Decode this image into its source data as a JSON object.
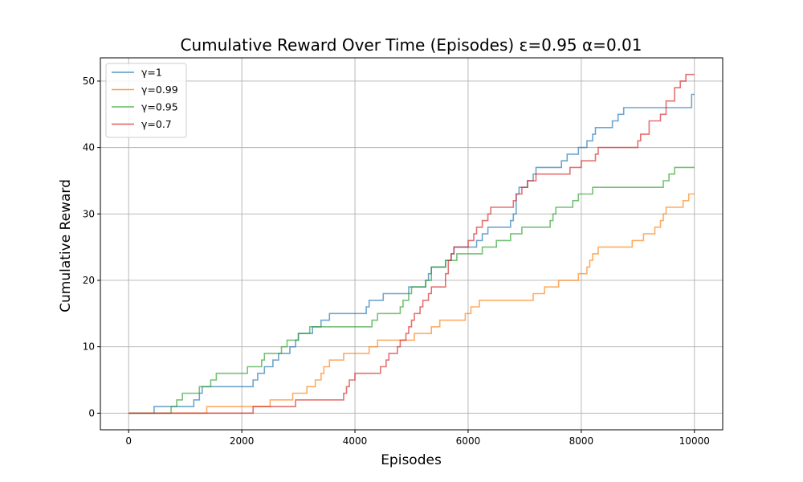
{
  "chart_data": {
    "type": "line",
    "title": "Cumulative Reward Over Time (Episodes) ε=0.95 α=0.01",
    "xlabel": "Episodes",
    "ylabel": "Cumulative Reward",
    "xlim": [
      -500,
      10500
    ],
    "ylim": [
      -2.5,
      53.5
    ],
    "xticks": [
      0,
      2000,
      4000,
      6000,
      8000,
      10000
    ],
    "yticks": [
      0,
      10,
      20,
      30,
      40,
      50
    ],
    "grid": true,
    "legend_position": "top-left",
    "series": [
      {
        "name": "γ=1",
        "color": "#1f77b4",
        "points": [
          [
            0,
            0
          ],
          [
            450,
            0
          ],
          [
            450,
            1
          ],
          [
            1150,
            1
          ],
          [
            1150,
            2
          ],
          [
            1250,
            2
          ],
          [
            1250,
            3
          ],
          [
            1300,
            3
          ],
          [
            1300,
            4
          ],
          [
            2200,
            4
          ],
          [
            2200,
            5
          ],
          [
            2280,
            5
          ],
          [
            2280,
            6
          ],
          [
            2400,
            6
          ],
          [
            2400,
            7
          ],
          [
            2550,
            7
          ],
          [
            2550,
            8
          ],
          [
            2650,
            8
          ],
          [
            2650,
            9
          ],
          [
            2850,
            9
          ],
          [
            2850,
            10
          ],
          [
            2950,
            10
          ],
          [
            2950,
            11
          ],
          [
            3000,
            11
          ],
          [
            3000,
            12
          ],
          [
            3250,
            12
          ],
          [
            3250,
            13
          ],
          [
            3400,
            13
          ],
          [
            3400,
            14
          ],
          [
            3550,
            14
          ],
          [
            3550,
            15
          ],
          [
            4200,
            15
          ],
          [
            4200,
            16
          ],
          [
            4250,
            16
          ],
          [
            4250,
            17
          ],
          [
            4500,
            17
          ],
          [
            4500,
            18
          ],
          [
            4950,
            18
          ],
          [
            4950,
            19
          ],
          [
            5250,
            19
          ],
          [
            5250,
            20
          ],
          [
            5300,
            20
          ],
          [
            5300,
            21
          ],
          [
            5350,
            21
          ],
          [
            5350,
            22
          ],
          [
            5600,
            22
          ],
          [
            5600,
            23
          ],
          [
            5700,
            23
          ],
          [
            5700,
            24
          ],
          [
            5750,
            24
          ],
          [
            5750,
            25
          ],
          [
            6150,
            25
          ],
          [
            6150,
            26
          ],
          [
            6250,
            26
          ],
          [
            6250,
            27
          ],
          [
            6350,
            27
          ],
          [
            6350,
            28
          ],
          [
            6750,
            28
          ],
          [
            6750,
            29
          ],
          [
            6800,
            29
          ],
          [
            6800,
            30
          ],
          [
            6850,
            30
          ],
          [
            6850,
            33
          ],
          [
            6900,
            33
          ],
          [
            6900,
            34
          ],
          [
            7050,
            34
          ],
          [
            7050,
            35
          ],
          [
            7150,
            35
          ],
          [
            7150,
            36
          ],
          [
            7200,
            36
          ],
          [
            7200,
            37
          ],
          [
            7650,
            37
          ],
          [
            7650,
            38
          ],
          [
            7750,
            38
          ],
          [
            7750,
            39
          ],
          [
            7950,
            39
          ],
          [
            7950,
            40
          ],
          [
            8100,
            40
          ],
          [
            8100,
            41
          ],
          [
            8200,
            41
          ],
          [
            8200,
            42
          ],
          [
            8250,
            42
          ],
          [
            8250,
            43
          ],
          [
            8550,
            43
          ],
          [
            8550,
            44
          ],
          [
            8650,
            44
          ],
          [
            8650,
            45
          ],
          [
            8750,
            45
          ],
          [
            8750,
            46
          ],
          [
            9950,
            46
          ],
          [
            9950,
            48
          ],
          [
            10000,
            48
          ]
        ]
      },
      {
        "name": "γ=0.99",
        "color": "#ff7f0e",
        "points": [
          [
            0,
            0
          ],
          [
            1380,
            0
          ],
          [
            1380,
            1
          ],
          [
            2500,
            1
          ],
          [
            2500,
            2
          ],
          [
            2900,
            2
          ],
          [
            2900,
            3
          ],
          [
            3150,
            3
          ],
          [
            3150,
            4
          ],
          [
            3300,
            4
          ],
          [
            3300,
            5
          ],
          [
            3400,
            5
          ],
          [
            3400,
            6
          ],
          [
            3450,
            6
          ],
          [
            3450,
            7
          ],
          [
            3550,
            7
          ],
          [
            3550,
            8
          ],
          [
            3800,
            8
          ],
          [
            3800,
            9
          ],
          [
            4250,
            9
          ],
          [
            4250,
            10
          ],
          [
            4400,
            10
          ],
          [
            4400,
            11
          ],
          [
            5050,
            11
          ],
          [
            5050,
            12
          ],
          [
            5350,
            12
          ],
          [
            5350,
            13
          ],
          [
            5500,
            13
          ],
          [
            5500,
            14
          ],
          [
            5950,
            14
          ],
          [
            5950,
            15
          ],
          [
            6050,
            15
          ],
          [
            6050,
            16
          ],
          [
            6200,
            16
          ],
          [
            6200,
            17
          ],
          [
            7150,
            17
          ],
          [
            7150,
            18
          ],
          [
            7350,
            18
          ],
          [
            7350,
            19
          ],
          [
            7600,
            19
          ],
          [
            7600,
            20
          ],
          [
            7950,
            20
          ],
          [
            7950,
            21
          ],
          [
            8100,
            21
          ],
          [
            8100,
            22
          ],
          [
            8150,
            22
          ],
          [
            8150,
            23
          ],
          [
            8200,
            23
          ],
          [
            8200,
            24
          ],
          [
            8300,
            24
          ],
          [
            8300,
            25
          ],
          [
            8900,
            25
          ],
          [
            8900,
            26
          ],
          [
            9100,
            26
          ],
          [
            9100,
            27
          ],
          [
            9300,
            27
          ],
          [
            9300,
            28
          ],
          [
            9400,
            28
          ],
          [
            9400,
            29
          ],
          [
            9450,
            29
          ],
          [
            9450,
            30
          ],
          [
            9500,
            30
          ],
          [
            9500,
            31
          ],
          [
            9800,
            31
          ],
          [
            9800,
            32
          ],
          [
            9900,
            32
          ],
          [
            9900,
            33
          ],
          [
            10000,
            33
          ]
        ]
      },
      {
        "name": "γ=0.95",
        "color": "#2ca02c",
        "points": [
          [
            0,
            0
          ],
          [
            750,
            0
          ],
          [
            750,
            1
          ],
          [
            850,
            1
          ],
          [
            850,
            2
          ],
          [
            950,
            2
          ],
          [
            950,
            3
          ],
          [
            1250,
            3
          ],
          [
            1250,
            4
          ],
          [
            1450,
            4
          ],
          [
            1450,
            5
          ],
          [
            1550,
            5
          ],
          [
            1550,
            6
          ],
          [
            2100,
            6
          ],
          [
            2100,
            7
          ],
          [
            2350,
            7
          ],
          [
            2350,
            8
          ],
          [
            2400,
            8
          ],
          [
            2400,
            9
          ],
          [
            2700,
            9
          ],
          [
            2700,
            10
          ],
          [
            2800,
            10
          ],
          [
            2800,
            11
          ],
          [
            3000,
            11
          ],
          [
            3000,
            12
          ],
          [
            3200,
            12
          ],
          [
            3200,
            13
          ],
          [
            4300,
            13
          ],
          [
            4300,
            14
          ],
          [
            4400,
            14
          ],
          [
            4400,
            15
          ],
          [
            4800,
            15
          ],
          [
            4800,
            16
          ],
          [
            4850,
            16
          ],
          [
            4850,
            17
          ],
          [
            4950,
            17
          ],
          [
            4950,
            18
          ],
          [
            5000,
            18
          ],
          [
            5000,
            19
          ],
          [
            5250,
            19
          ],
          [
            5250,
            20
          ],
          [
            5350,
            20
          ],
          [
            5350,
            22
          ],
          [
            5600,
            22
          ],
          [
            5600,
            23
          ],
          [
            5800,
            23
          ],
          [
            5800,
            24
          ],
          [
            6250,
            24
          ],
          [
            6250,
            25
          ],
          [
            6500,
            25
          ],
          [
            6500,
            26
          ],
          [
            6750,
            26
          ],
          [
            6750,
            27
          ],
          [
            6950,
            27
          ],
          [
            6950,
            28
          ],
          [
            7450,
            28
          ],
          [
            7450,
            29
          ],
          [
            7500,
            29
          ],
          [
            7500,
            30
          ],
          [
            7550,
            30
          ],
          [
            7550,
            31
          ],
          [
            7850,
            31
          ],
          [
            7850,
            32
          ],
          [
            7950,
            32
          ],
          [
            7950,
            33
          ],
          [
            8200,
            33
          ],
          [
            8200,
            34
          ],
          [
            9450,
            34
          ],
          [
            9450,
            35
          ],
          [
            9550,
            35
          ],
          [
            9550,
            36
          ],
          [
            9650,
            36
          ],
          [
            9650,
            37
          ],
          [
            10000,
            37
          ]
        ]
      },
      {
        "name": "γ=0.7",
        "color": "#d62728",
        "points": [
          [
            0,
            0
          ],
          [
            2200,
            0
          ],
          [
            2200,
            1
          ],
          [
            2950,
            1
          ],
          [
            2950,
            2
          ],
          [
            3800,
            2
          ],
          [
            3800,
            3
          ],
          [
            3850,
            3
          ],
          [
            3850,
            4
          ],
          [
            3900,
            4
          ],
          [
            3900,
            5
          ],
          [
            4000,
            5
          ],
          [
            4000,
            6
          ],
          [
            4450,
            6
          ],
          [
            4450,
            7
          ],
          [
            4550,
            7
          ],
          [
            4550,
            8
          ],
          [
            4600,
            8
          ],
          [
            4600,
            9
          ],
          [
            4750,
            9
          ],
          [
            4750,
            10
          ],
          [
            4800,
            10
          ],
          [
            4800,
            11
          ],
          [
            4900,
            11
          ],
          [
            4900,
            12
          ],
          [
            4950,
            12
          ],
          [
            4950,
            13
          ],
          [
            5000,
            13
          ],
          [
            5000,
            14
          ],
          [
            5050,
            14
          ],
          [
            5050,
            15
          ],
          [
            5150,
            15
          ],
          [
            5150,
            16
          ],
          [
            5200,
            16
          ],
          [
            5200,
            17
          ],
          [
            5300,
            17
          ],
          [
            5300,
            18
          ],
          [
            5350,
            18
          ],
          [
            5350,
            19
          ],
          [
            5600,
            19
          ],
          [
            5600,
            21
          ],
          [
            5650,
            21
          ],
          [
            5650,
            23
          ],
          [
            5700,
            23
          ],
          [
            5700,
            24
          ],
          [
            5750,
            24
          ],
          [
            5750,
            25
          ],
          [
            6000,
            25
          ],
          [
            6000,
            26
          ],
          [
            6100,
            26
          ],
          [
            6100,
            27
          ],
          [
            6150,
            27
          ],
          [
            6150,
            28
          ],
          [
            6250,
            28
          ],
          [
            6250,
            29
          ],
          [
            6350,
            29
          ],
          [
            6350,
            30
          ],
          [
            6400,
            30
          ],
          [
            6400,
            31
          ],
          [
            6800,
            31
          ],
          [
            6800,
            32
          ],
          [
            6850,
            32
          ],
          [
            6850,
            33
          ],
          [
            6950,
            33
          ],
          [
            6950,
            34
          ],
          [
            7050,
            34
          ],
          [
            7050,
            35
          ],
          [
            7200,
            35
          ],
          [
            7200,
            36
          ],
          [
            7800,
            36
          ],
          [
            7800,
            37
          ],
          [
            8000,
            37
          ],
          [
            8000,
            38
          ],
          [
            8250,
            38
          ],
          [
            8250,
            39
          ],
          [
            8300,
            39
          ],
          [
            8300,
            40
          ],
          [
            9000,
            40
          ],
          [
            9000,
            41
          ],
          [
            9050,
            41
          ],
          [
            9050,
            42
          ],
          [
            9200,
            42
          ],
          [
            9200,
            44
          ],
          [
            9400,
            44
          ],
          [
            9400,
            45
          ],
          [
            9500,
            45
          ],
          [
            9500,
            47
          ],
          [
            9650,
            47
          ],
          [
            9650,
            49
          ],
          [
            9750,
            49
          ],
          [
            9750,
            50
          ],
          [
            9850,
            50
          ],
          [
            9850,
            51
          ],
          [
            10000,
            51
          ]
        ]
      }
    ]
  }
}
